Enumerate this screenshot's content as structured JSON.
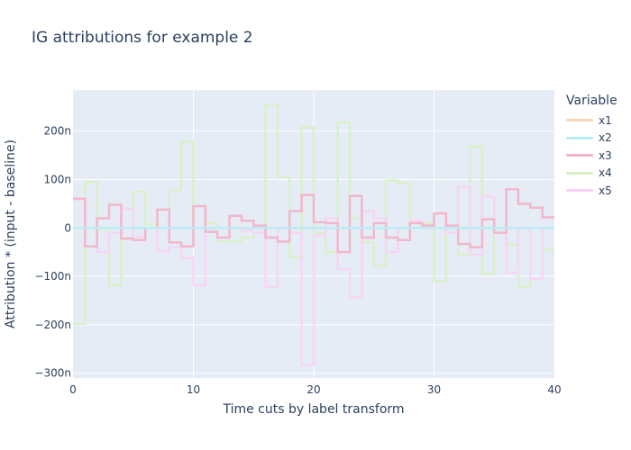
{
  "chart_data": {
    "type": "line",
    "line_shape": "step",
    "title": "IG attributions for example 2",
    "xlabel": "Time cuts by label transform",
    "ylabel": "Attribution * (input - baseline)",
    "xlim": [
      0,
      40
    ],
    "ylim": [
      -310,
      285
    ],
    "y_unit": "n",
    "x_ticks": [
      0,
      10,
      20,
      30,
      40
    ],
    "x_tick_labels": [
      "0",
      "10",
      "20",
      "30",
      "40"
    ],
    "y_ticks": [
      -300,
      -200,
      -100,
      0,
      100,
      200
    ],
    "y_tick_labels": [
      "−300n",
      "−200n",
      "−100n",
      "0",
      "100n",
      "200n"
    ],
    "grid": true,
    "legend_title": "Variable",
    "legend_position": "right",
    "series": [
      {
        "name": "x1",
        "color": "#fcd6b8",
        "values": [
          0,
          0,
          0,
          0,
          0,
          0,
          0,
          0,
          0,
          0,
          0,
          0,
          0,
          0,
          0,
          0,
          0,
          0,
          0,
          0,
          0,
          0,
          0,
          0,
          0,
          0,
          0,
          0,
          0,
          0,
          0,
          0,
          0,
          0,
          0,
          0,
          0,
          0,
          0,
          0
        ]
      },
      {
        "name": "x2",
        "color": "#b8ecf6",
        "values": [
          0,
          0,
          0,
          0,
          0,
          0,
          0,
          0,
          0,
          0,
          0,
          0,
          0,
          0,
          0,
          0,
          0,
          0,
          0,
          0,
          0,
          0,
          0,
          0,
          0,
          0,
          0,
          0,
          0,
          0,
          0,
          0,
          0,
          0,
          0,
          0,
          0,
          0,
          0,
          0
        ]
      },
      {
        "name": "x3",
        "color": "#f2b4c8",
        "values": [
          60,
          -38,
          20,
          48,
          -22,
          -25,
          0,
          38,
          -30,
          -38,
          45,
          -8,
          -20,
          25,
          15,
          5,
          -20,
          -28,
          35,
          68,
          12,
          10,
          -50,
          66,
          -20,
          10,
          -20,
          -25,
          10,
          5,
          30,
          5,
          -33,
          -40,
          18,
          -10,
          80,
          50,
          42,
          22
        ]
      },
      {
        "name": "x4",
        "color": "#d8f0c8",
        "values": [
          -198,
          95,
          -2,
          -118,
          0,
          75,
          8,
          0,
          78,
          178,
          0,
          10,
          -28,
          -28,
          -20,
          -10,
          255,
          105,
          -60,
          208,
          -10,
          -50,
          218,
          20,
          -30,
          -78,
          98,
          92,
          0,
          10,
          -110,
          0,
          -55,
          168,
          -95,
          0,
          -35,
          -122,
          0,
          -45
        ]
      },
      {
        "name": "x5",
        "color": "#f8d4f4",
        "values": [
          62,
          0,
          -50,
          -10,
          40,
          -18,
          0,
          -48,
          -40,
          -62,
          -118,
          0,
          0,
          0,
          -5,
          -10,
          -122,
          0,
          -10,
          -283,
          -15,
          20,
          -85,
          -143,
          35,
          20,
          -50,
          0,
          15,
          0,
          0,
          -10,
          85,
          -55,
          65,
          0,
          -92,
          0,
          -105,
          0
        ]
      }
    ]
  }
}
